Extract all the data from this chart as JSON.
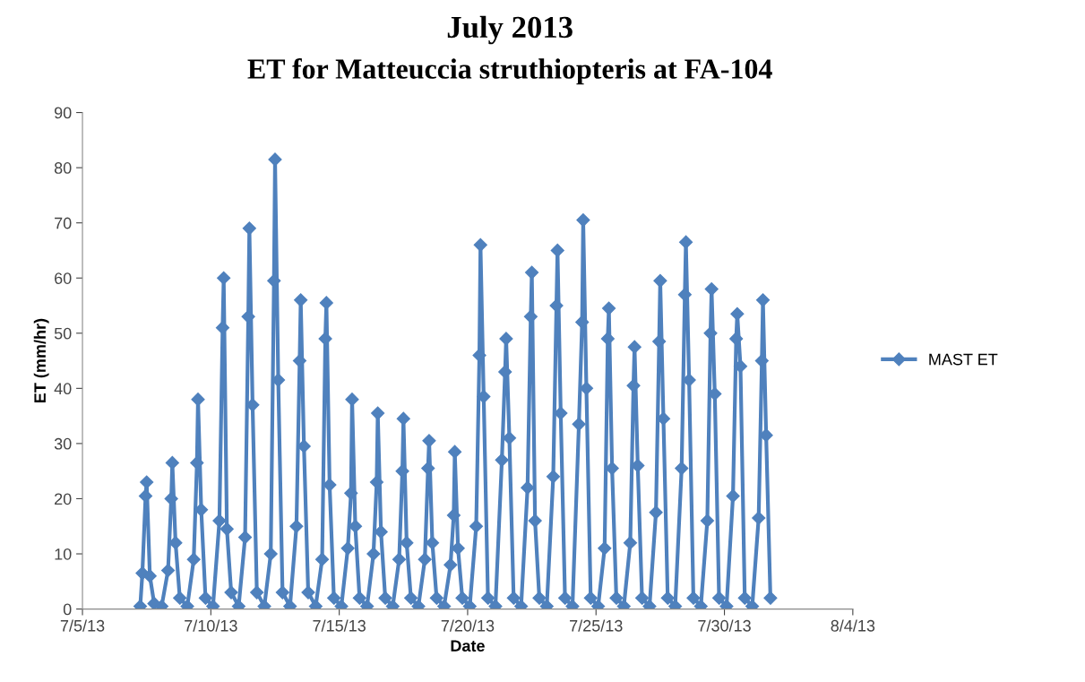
{
  "chart_data": {
    "type": "line",
    "title": "July 2013",
    "subtitle": "ET for Matteuccia struthiopteris at FA-104",
    "xlabel": "Date",
    "ylabel": "ET (mm/hr)",
    "xlim": [
      "2013-07-05",
      "2013-08-04"
    ],
    "xticks": [
      {
        "value": "2013-07-05",
        "label": "7/5/13"
      },
      {
        "value": "2013-07-10",
        "label": "7/10/13"
      },
      {
        "value": "2013-07-15",
        "label": "7/15/13"
      },
      {
        "value": "2013-07-20",
        "label": "7/20/13"
      },
      {
        "value": "2013-07-25",
        "label": "7/25/13"
      },
      {
        "value": "2013-07-30",
        "label": "7/30/13"
      },
      {
        "value": "2013-08-04",
        "label": "8/4/13"
      }
    ],
    "ylim": [
      0,
      90
    ],
    "yticks": [
      0,
      10,
      20,
      30,
      40,
      50,
      60,
      70,
      80,
      90
    ],
    "grid": false,
    "legend": "right",
    "marker": "diamond",
    "line_style": "solid",
    "x": [
      "2013-07-07T06:00",
      "2013-07-07T08:00",
      "2013-07-07T11:00",
      "2013-07-07T12:00",
      "2013-07-07T15:00",
      "2013-07-07T19:00",
      "2013-07-08T02:00",
      "2013-07-08T08:00",
      "2013-07-08T11:00",
      "2013-07-08T12:00",
      "2013-07-08T15:00",
      "2013-07-08T19:00",
      "2013-07-09T02:00",
      "2013-07-09T08:00",
      "2013-07-09T11:00",
      "2013-07-09T12:00",
      "2013-07-09T15:00",
      "2013-07-09T19:00",
      "2013-07-10T02:00",
      "2013-07-10T08:00",
      "2013-07-10T11:00",
      "2013-07-10T12:00",
      "2013-07-10T15:00",
      "2013-07-10T19:00",
      "2013-07-11T02:00",
      "2013-07-11T08:00",
      "2013-07-11T11:00",
      "2013-07-11T12:00",
      "2013-07-11T15:00",
      "2013-07-11T19:00",
      "2013-07-12T02:00",
      "2013-07-12T08:00",
      "2013-07-12T11:00",
      "2013-07-12T12:00",
      "2013-07-12T15:00",
      "2013-07-12T19:00",
      "2013-07-13T02:00",
      "2013-07-13T08:00",
      "2013-07-13T11:00",
      "2013-07-13T12:00",
      "2013-07-13T15:00",
      "2013-07-13T19:00",
      "2013-07-14T02:00",
      "2013-07-14T08:00",
      "2013-07-14T11:00",
      "2013-07-14T12:00",
      "2013-07-14T15:00",
      "2013-07-14T19:00",
      "2013-07-15T02:00",
      "2013-07-15T08:00",
      "2013-07-15T11:00",
      "2013-07-15T12:00",
      "2013-07-15T15:00",
      "2013-07-15T19:00",
      "2013-07-16T02:00",
      "2013-07-16T08:00",
      "2013-07-16T11:00",
      "2013-07-16T12:00",
      "2013-07-16T15:00",
      "2013-07-16T19:00",
      "2013-07-17T02:00",
      "2013-07-17T08:00",
      "2013-07-17T11:00",
      "2013-07-17T12:00",
      "2013-07-17T15:00",
      "2013-07-17T19:00",
      "2013-07-18T02:00",
      "2013-07-18T08:00",
      "2013-07-18T11:00",
      "2013-07-18T12:00",
      "2013-07-18T15:00",
      "2013-07-18T19:00",
      "2013-07-19T02:00",
      "2013-07-19T08:00",
      "2013-07-19T11:00",
      "2013-07-19T12:00",
      "2013-07-19T15:00",
      "2013-07-19T19:00",
      "2013-07-20T02:00",
      "2013-07-20T08:00",
      "2013-07-20T11:00",
      "2013-07-20T12:00",
      "2013-07-20T15:00",
      "2013-07-20T19:00",
      "2013-07-21T02:00",
      "2013-07-21T08:00",
      "2013-07-21T11:00",
      "2013-07-21T12:00",
      "2013-07-21T15:00",
      "2013-07-21T19:00",
      "2013-07-22T02:00",
      "2013-07-22T08:00",
      "2013-07-22T11:00",
      "2013-07-22T12:00",
      "2013-07-22T15:00",
      "2013-07-22T19:00",
      "2013-07-23T02:00",
      "2013-07-23T08:00",
      "2013-07-23T11:00",
      "2013-07-23T12:00",
      "2013-07-23T15:00",
      "2013-07-23T19:00",
      "2013-07-24T02:00",
      "2013-07-24T08:00",
      "2013-07-24T11:00",
      "2013-07-24T12:00",
      "2013-07-24T15:00",
      "2013-07-24T19:00",
      "2013-07-25T02:00",
      "2013-07-25T08:00",
      "2013-07-25T11:00",
      "2013-07-25T12:00",
      "2013-07-25T15:00",
      "2013-07-25T19:00",
      "2013-07-26T02:00",
      "2013-07-26T08:00",
      "2013-07-26T11:00",
      "2013-07-26T12:00",
      "2013-07-26T15:00",
      "2013-07-26T19:00",
      "2013-07-27T02:00",
      "2013-07-27T08:00",
      "2013-07-27T11:00",
      "2013-07-27T12:00",
      "2013-07-27T15:00",
      "2013-07-27T19:00",
      "2013-07-28T02:00",
      "2013-07-28T08:00",
      "2013-07-28T11:00",
      "2013-07-28T12:00",
      "2013-07-28T15:00",
      "2013-07-28T19:00",
      "2013-07-29T02:00",
      "2013-07-29T08:00",
      "2013-07-29T11:00",
      "2013-07-29T12:00",
      "2013-07-29T15:00",
      "2013-07-29T19:00",
      "2013-07-30T02:00",
      "2013-07-30T08:00",
      "2013-07-30T11:00",
      "2013-07-30T12:00",
      "2013-07-30T15:00",
      "2013-07-30T19:00",
      "2013-07-31T02:00",
      "2013-07-31T08:00",
      "2013-07-31T11:00",
      "2013-07-31T12:00",
      "2013-07-31T15:00",
      "2013-07-31T19:00"
    ],
    "series": [
      {
        "name": "MAST ET",
        "color": "#4f81bd",
        "values": [
          0.5,
          6.5,
          20.5,
          23,
          6,
          1,
          0.5,
          7,
          20,
          26.5,
          12,
          2,
          0.5,
          9,
          26.5,
          38,
          18,
          2,
          0.5,
          16,
          51,
          60,
          14.5,
          3,
          0.5,
          13,
          53,
          69,
          37,
          3,
          0.5,
          10,
          59.5,
          81.5,
          41.5,
          3,
          0.5,
          15,
          45,
          56,
          29.5,
          3,
          0.5,
          9,
          49,
          55.5,
          22.5,
          2,
          0.5,
          11,
          21,
          38,
          15,
          2,
          0.5,
          10,
          23,
          35.5,
          14,
          2,
          0.5,
          9,
          25,
          34.5,
          12,
          2,
          0.5,
          9,
          25.5,
          30.5,
          12,
          2,
          0.5,
          8,
          17,
          28.5,
          11,
          2,
          0.5,
          15,
          46,
          66,
          38.5,
          2,
          0.5,
          27,
          43,
          49,
          31,
          2,
          0.5,
          22,
          53,
          61,
          16,
          2,
          0.5,
          24,
          55,
          65,
          35.5,
          2,
          0.5,
          33.5,
          52,
          70.5,
          40,
          2,
          0.5,
          11,
          49,
          54.5,
          25.5,
          2,
          0.5,
          12,
          40.5,
          47.5,
          26,
          2,
          0.5,
          17.5,
          48.5,
          59.5,
          34.5,
          2,
          0.5,
          25.5,
          57,
          66.5,
          41.5,
          2,
          0.5,
          16,
          50,
          58,
          39,
          2,
          0.5,
          20.5,
          49,
          53.5,
          44,
          2,
          0.5,
          16.5,
          45,
          56,
          31.5,
          2
        ]
      }
    ]
  }
}
